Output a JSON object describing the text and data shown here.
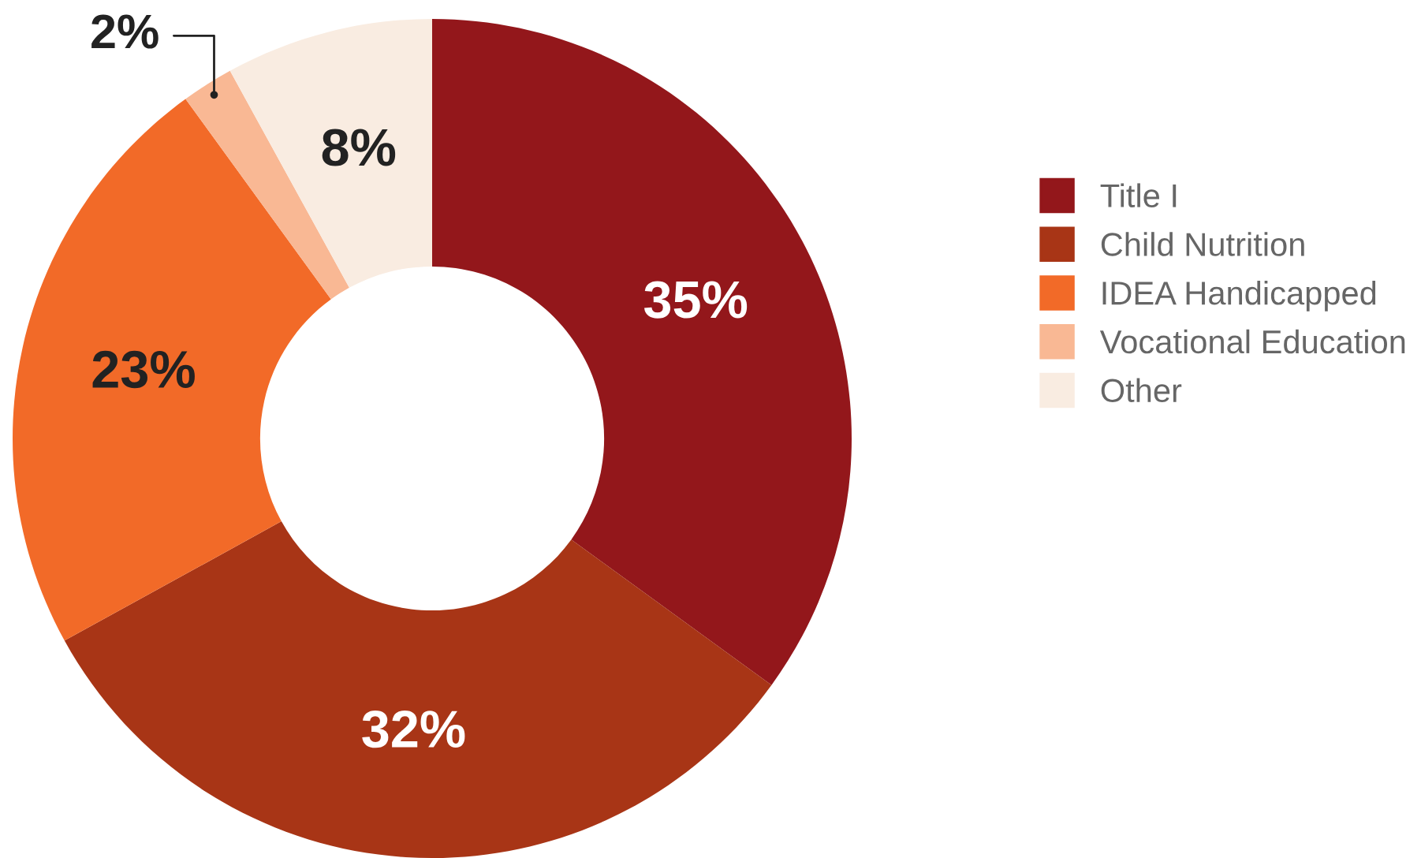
{
  "chart_data": {
    "type": "donut",
    "categories": [
      "Title I",
      "Child Nutrition",
      "IDEA Handicapped",
      "Vocational Education",
      "Other"
    ],
    "values": [
      35,
      32,
      23,
      2,
      8
    ],
    "colors": [
      "#93171b",
      "#a83516",
      "#f26a28",
      "#f9b894",
      "#f9ece1"
    ],
    "value_labels": [
      "35%",
      "32%",
      "23%",
      "2%",
      "8%"
    ],
    "legend": "right"
  }
}
